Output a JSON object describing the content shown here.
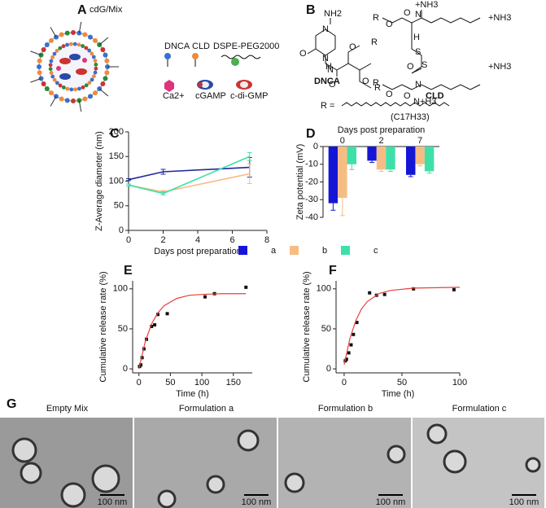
{
  "panel_labels": [
    "A",
    "B",
    "C",
    "D",
    "E",
    "F",
    "G"
  ],
  "schematic": {
    "title": "cdG/Mix",
    "components": [
      "DNCA",
      "CLD",
      "DSPE-PEG2000",
      "Ca2+",
      "cGAMP",
      "c-di-GMP"
    ]
  },
  "structures": {
    "names": [
      "DNCA",
      "CLD"
    ],
    "atoms": [
      "NH2",
      "N",
      "O",
      "N",
      "O",
      "H",
      "N",
      "O",
      "O",
      "R",
      "R",
      "R",
      "O",
      "O",
      "H",
      "N",
      "+NH3",
      "+NH3",
      "S",
      "S",
      "O",
      "O",
      "R",
      "N",
      "N+H3",
      "O",
      "+NH3"
    ],
    "r_def": "R =",
    "r_formula": "(C17H33)"
  },
  "chart_data": [
    {
      "type": "line",
      "x": [
        0,
        2,
        7
      ],
      "xlim": [
        0,
        8
      ],
      "xticks": [
        0,
        2,
        4,
        6,
        8
      ],
      "ylim": [
        0,
        200
      ],
      "yticks": [
        0,
        50,
        100,
        150,
        200
      ],
      "x_label": "Days post preparation",
      "y_label": "Z-Average diameter (nm)",
      "series": [
        {
          "name": "a",
          "color": "#1f2a9c",
          "values": [
            103,
            119,
            128
          ],
          "errors": [
            2,
            5,
            20
          ]
        },
        {
          "name": "b",
          "color": "#f5bd84",
          "values": [
            92,
            78,
            115
          ],
          "errors": [
            2,
            3,
            20
          ]
        },
        {
          "name": "c",
          "color": "#3fe0a8",
          "values": [
            92,
            75,
            150
          ],
          "errors": [
            2,
            3,
            8
          ]
        }
      ]
    },
    {
      "type": "bar",
      "categories": [
        "0",
        "2",
        "7"
      ],
      "ylim": [
        -40,
        0
      ],
      "yticks": [
        0,
        -10,
        -20,
        -30,
        -40
      ],
      "x_label": "Days post preparation",
      "y_label": "Zeta potential (mV)",
      "legend": "bottom",
      "series": [
        {
          "name": "a",
          "color": "#1515d6",
          "values": [
            -32,
            -8,
            -16
          ],
          "errors": [
            4,
            1,
            1
          ]
        },
        {
          "name": "b",
          "color": "#f5bd84",
          "values": [
            -29,
            -13,
            -10
          ],
          "errors": [
            10,
            1,
            1
          ]
        },
        {
          "name": "c",
          "color": "#3fe0a8",
          "values": [
            -10,
            -13,
            -14
          ],
          "errors": [
            3,
            1,
            1
          ]
        }
      ]
    },
    {
      "type": "scatter",
      "xlim": [
        -10,
        180
      ],
      "xticks": [
        0,
        50,
        100,
        150
      ],
      "ylim": [
        -5,
        110
      ],
      "yticks": [
        0,
        50,
        100
      ],
      "x_label": "Time (h)",
      "y_label": "Cumulative release rate (%)",
      "series": [
        {
          "mode": "markers",
          "color": "#111111",
          "x": [
            1,
            3,
            5,
            8,
            12,
            20,
            25,
            30,
            45,
            105,
            120,
            170
          ],
          "values": [
            3,
            5,
            14,
            25,
            37,
            53,
            55,
            68,
            69,
            90,
            94,
            102
          ]
        },
        {
          "mode": "line",
          "color": "#e8413a",
          "x": [
            0,
            10,
            20,
            30,
            40,
            60,
            80,
            100,
            130,
            170
          ],
          "values": [
            0,
            34,
            56,
            70,
            79,
            88,
            92,
            93,
            94,
            94
          ]
        }
      ]
    },
    {
      "type": "scatter",
      "xlim": [
        -7,
        100
      ],
      "xticks": [
        0,
        50,
        100
      ],
      "ylim": [
        -5,
        110
      ],
      "yticks": [
        0,
        50,
        100
      ],
      "x_label": "Time (h)",
      "y_label": "Cumulative release rate (%)",
      "series": [
        {
          "mode": "markers",
          "color": "#111111",
          "x": [
            1,
            2,
            4,
            6,
            8,
            11,
            22,
            28,
            35,
            60,
            95
          ],
          "values": [
            10,
            12,
            20,
            30,
            43,
            58,
            95,
            92,
            93,
            100,
            99
          ]
        },
        {
          "mode": "line",
          "color": "#e8413a",
          "x": [
            0,
            5,
            10,
            15,
            20,
            30,
            40,
            60,
            100
          ],
          "values": [
            5,
            38,
            60,
            75,
            84,
            94,
            98,
            101,
            102
          ]
        }
      ]
    }
  ],
  "micrographs": [
    {
      "title": "Empty Mix",
      "scale": "100 nm"
    },
    {
      "title": "Formulation a",
      "scale": "100 nm"
    },
    {
      "title": "Formulation b",
      "scale": "100 nm"
    },
    {
      "title": "Formulation c",
      "scale": "100 nm"
    }
  ]
}
